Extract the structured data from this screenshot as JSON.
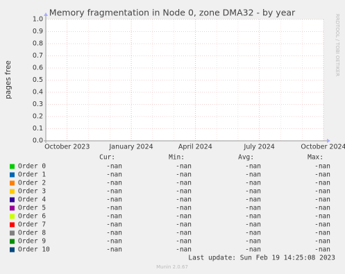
{
  "chart_data": {
    "type": "line",
    "title": "Memory fragmentation in Node 0, zone DMA32 - by year",
    "ylabel": "pages free",
    "side_label": "RRDTOOL / TOBI OETIKER",
    "ylim": [
      0,
      1
    ],
    "yticks": [
      {
        "value": 0,
        "label": "0.0"
      },
      {
        "value": 0.1,
        "label": "0.1"
      },
      {
        "value": 0.2,
        "label": "0.2"
      },
      {
        "value": 0.3,
        "label": "0.3"
      },
      {
        "value": 0.4,
        "label": "0.4"
      },
      {
        "value": 0.5,
        "label": "0.5"
      },
      {
        "value": 0.6,
        "label": "0.6"
      },
      {
        "value": 0.7,
        "label": "0.7"
      },
      {
        "value": 0.8,
        "label": "0.8"
      },
      {
        "value": 0.9,
        "label": "0.9"
      },
      {
        "value": 1,
        "label": "1.0"
      }
    ],
    "xlim": [
      "2023-09",
      "2024-10"
    ],
    "xticks": [
      {
        "value": "2023-10",
        "label": "October 2023"
      },
      {
        "value": "2024-01",
        "label": "January 2024"
      },
      {
        "value": "2024-04",
        "label": "April 2024"
      },
      {
        "value": "2024-07",
        "label": "July 2024"
      },
      {
        "value": "2024-10",
        "label": "October 2024"
      }
    ],
    "grid": true,
    "stat_labels": [
      "Cur:",
      "Min:",
      "Avg:",
      "Max:"
    ],
    "series": [
      {
        "name": "Order 0",
        "color": "#00cc00",
        "values": [],
        "stats": [
          "-nan",
          "-nan",
          "-nan",
          "-nan"
        ]
      },
      {
        "name": "Order 1",
        "color": "#0066b3",
        "values": [],
        "stats": [
          "-nan",
          "-nan",
          "-nan",
          "-nan"
        ]
      },
      {
        "name": "Order 2",
        "color": "#ff8000",
        "values": [],
        "stats": [
          "-nan",
          "-nan",
          "-nan",
          "-nan"
        ]
      },
      {
        "name": "Order 3",
        "color": "#ffcc00",
        "values": [],
        "stats": [
          "-nan",
          "-nan",
          "-nan",
          "-nan"
        ]
      },
      {
        "name": "Order 4",
        "color": "#330099",
        "values": [],
        "stats": [
          "-nan",
          "-nan",
          "-nan",
          "-nan"
        ]
      },
      {
        "name": "Order 5",
        "color": "#990099",
        "values": [],
        "stats": [
          "-nan",
          "-nan",
          "-nan",
          "-nan"
        ]
      },
      {
        "name": "Order 6",
        "color": "#ccff00",
        "values": [],
        "stats": [
          "-nan",
          "-nan",
          "-nan",
          "-nan"
        ]
      },
      {
        "name": "Order 7",
        "color": "#ff0000",
        "values": [],
        "stats": [
          "-nan",
          "-nan",
          "-nan",
          "-nan"
        ]
      },
      {
        "name": "Order 8",
        "color": "#808080",
        "values": [],
        "stats": [
          "-nan",
          "-nan",
          "-nan",
          "-nan"
        ]
      },
      {
        "name": "Order 9",
        "color": "#008f00",
        "values": [],
        "stats": [
          "-nan",
          "-nan",
          "-nan",
          "-nan"
        ]
      },
      {
        "name": "Order 10",
        "color": "#00487d",
        "values": [],
        "stats": [
          "-nan",
          "-nan",
          "-nan",
          "-nan"
        ]
      }
    ],
    "last_update": "Last update: Sun Feb 19 14:25:08 2023",
    "footer": "Munin 2.0.67"
  }
}
